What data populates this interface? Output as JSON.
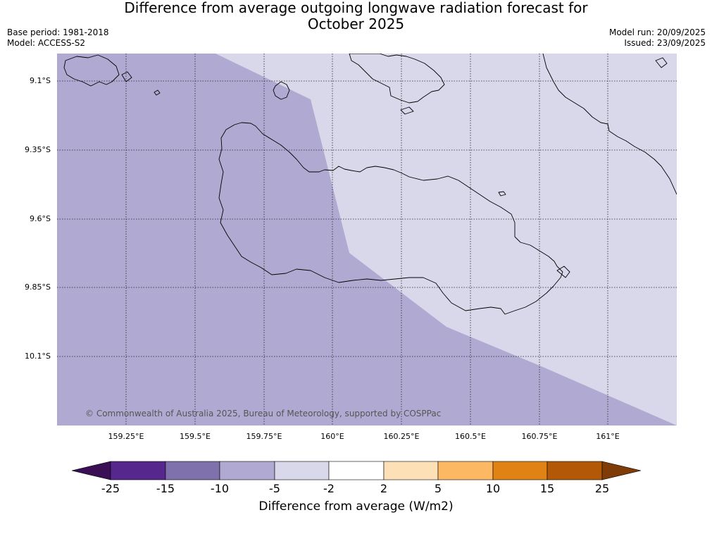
{
  "title": {
    "line1": "Difference from average outgoing longwave radiation forecast for",
    "line2": "October 2025"
  },
  "meta": {
    "base_period": "Base period: 1981-2018",
    "model": "Model: ACCESS-S2",
    "model_run": "Model run: 20/09/2025",
    "issued": "Issued: 23/09/2025"
  },
  "map": {
    "copyright": "© Commonwealth of Australia 2025, Bureau of Meteorology, supported by COSPPac",
    "lat_labels": [
      "9.1°S",
      "9.35°S",
      "9.6°S",
      "9.85°S",
      "10.1°S"
    ],
    "lon_labels": [
      "159.25°E",
      "159.5°E",
      "159.75°E",
      "160°E",
      "160.25°E",
      "160.5°E",
      "160.75°E",
      "161°E"
    ],
    "zones": [
      {
        "category": "-10 to -5",
        "color": "#b0aad2"
      },
      {
        "category": "-5 to -2",
        "color": "#d8d8ea"
      }
    ]
  },
  "colorbar": {
    "label": "Difference from average (W/m2)",
    "ticks": [
      "-25",
      "-15",
      "-10",
      "-5",
      "-2",
      "2",
      "5",
      "10",
      "15",
      "25"
    ],
    "colors": [
      "#3b0f55",
      "#56278c",
      "#7f72ac",
      "#b0aad2",
      "#d8d8ea",
      "#ffffff",
      "#fee0b6",
      "#fdb863",
      "#e08214",
      "#b35806",
      "#7f3b08"
    ]
  }
}
